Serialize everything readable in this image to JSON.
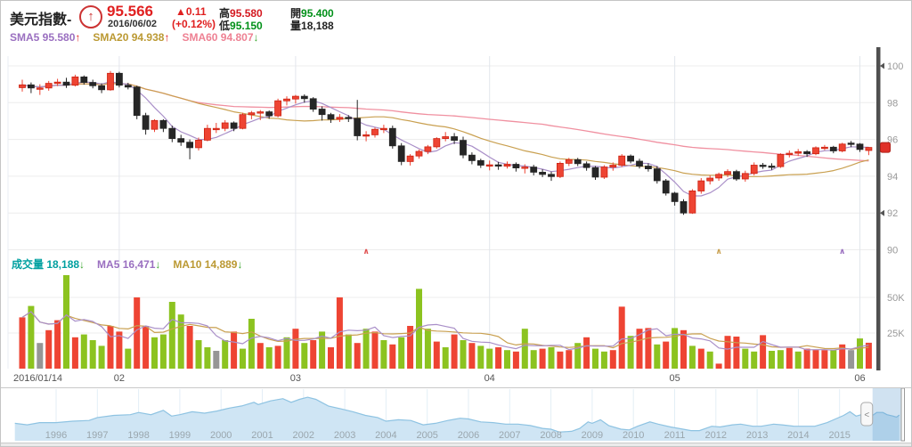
{
  "header": {
    "title": "美元指數-",
    "trend_icon_glyph": "↑",
    "price": "95.566",
    "date": "2016/06/02",
    "change": "▲0.11",
    "change_pct": "(+0.12%)",
    "high_label": "高",
    "high": "95.580",
    "open_label": "開",
    "open": "95.400",
    "low_label": "低",
    "low": "95.150",
    "vol_label": "量",
    "volume": "18,188"
  },
  "sma_row": [
    {
      "label": "SMA5",
      "value": "95.580",
      "arrow": "↑",
      "color": "#9a6fc0",
      "arrow_color": "#e02020"
    },
    {
      "label": "SMA20",
      "value": "94.938",
      "arrow": "↑",
      "color": "#bb9933",
      "arrow_color": "#e02020"
    },
    {
      "label": "SMA60",
      "value": "94.807",
      "arrow": "↓",
      "color": "#ee8193",
      "arrow_color": "#3aa62e"
    }
  ],
  "volume_row": [
    {
      "label": "成交量",
      "value": "18,188",
      "arrow": "↓",
      "color": "#00a0a0",
      "arrow_color": "#3aa62e"
    },
    {
      "label": "MA5",
      "value": "16,471",
      "arrow": "↓",
      "color": "#9a6fc0",
      "arrow_color": "#3aa62e"
    },
    {
      "label": "MA10",
      "value": "14,889",
      "arrow": "↓",
      "color": "#bb9933",
      "arrow_color": "#3aa62e"
    }
  ],
  "colors": {
    "candle_up": "#ee4433",
    "candle_up_stroke": "#cc2211",
    "candle_down": "#262626",
    "vol_up": "#ee4433",
    "vol_down": "#8cc320",
    "vol_flat": "#969696",
    "sma5": "#a98fc8",
    "sma20": "#c9a050",
    "sma60": "#f090a0",
    "grid": "#ececec",
    "vgrid": "#e2e6ec",
    "axis_text": "#999999",
    "xlabel_text": "#555555",
    "side_bar": "#4f4f4f",
    "price_tag": "#e03028",
    "nav_fill": "#cfe5f4",
    "nav_line": "#8ec3e2",
    "nav_sel": "rgba(100,160,210,0.30)",
    "nav_grid": "#e3eef6",
    "nav_text": "#9aa6ad",
    "border": "#c9c9c9"
  },
  "chart_data": {
    "type": "candlestick+volume",
    "title": "美元指數 (US Dollar Index) daily candlestick chart with SMA5/SMA20/SMA60 and volume",
    "y_axis_ticks": [
      100,
      98,
      96,
      94,
      92,
      90
    ],
    "axis_triangle_levels": [
      100,
      92
    ],
    "current_price": 95.566,
    "volume_ticks": [
      {
        "label": "50K",
        "value": 50000
      },
      {
        "label": "25K",
        "value": 25000
      }
    ],
    "x_labels": [
      {
        "text": "2016/01/14",
        "index": 0,
        "align": "start"
      },
      {
        "text": "02",
        "index": 11,
        "align": "middle"
      },
      {
        "text": "03",
        "index": 31,
        "align": "middle"
      },
      {
        "text": "04",
        "index": 53,
        "align": "middle"
      },
      {
        "text": "05",
        "index": 74,
        "align": "middle"
      },
      {
        "text": "06",
        "index": 95,
        "align": "middle"
      }
    ],
    "signal_markers": [
      {
        "index": 39,
        "glyph": "∧",
        "color": "#e05050"
      },
      {
        "index": 79,
        "glyph": "∧",
        "color": "#c9a050"
      },
      {
        "index": 93,
        "glyph": "∧",
        "color": "#9a6fc0"
      }
    ],
    "candles_columns": [
      "date",
      "open",
      "high",
      "low",
      "close",
      "volume",
      "vol_color(r=up,g=down,n=flat)"
    ],
    "candles": [
      [
        "01/14",
        98.82,
        99.25,
        98.6,
        98.97,
        36000,
        "r"
      ],
      [
        "01/15",
        98.97,
        99.1,
        98.52,
        98.8,
        44000,
        "g"
      ],
      [
        "01/19",
        98.8,
        99.0,
        98.42,
        98.8,
        18000,
        "n"
      ],
      [
        "01/20",
        98.8,
        99.18,
        98.65,
        99.05,
        27000,
        "r"
      ],
      [
        "01/21",
        99.05,
        99.3,
        98.9,
        99.12,
        34000,
        "r"
      ],
      [
        "01/22",
        99.12,
        99.35,
        98.8,
        98.95,
        65600,
        "g"
      ],
      [
        "01/25",
        98.95,
        99.52,
        98.88,
        99.4,
        22000,
        "r"
      ],
      [
        "01/26",
        99.4,
        99.48,
        98.98,
        99.1,
        24000,
        "g"
      ],
      [
        "01/27",
        99.1,
        99.25,
        98.78,
        98.92,
        20000,
        "g"
      ],
      [
        "01/28",
        98.92,
        99.05,
        98.52,
        98.7,
        16000,
        "g"
      ],
      [
        "01/29",
        98.7,
        99.72,
        98.65,
        99.6,
        30000,
        "r"
      ],
      [
        "02/01",
        99.6,
        99.68,
        98.83,
        98.95,
        26000,
        "r"
      ],
      [
        "02/02",
        98.95,
        99.08,
        98.72,
        98.85,
        14000,
        "g"
      ],
      [
        "02/03",
        98.85,
        98.92,
        97.1,
        97.3,
        50000,
        "r"
      ],
      [
        "02/04",
        97.3,
        97.45,
        96.26,
        96.55,
        30000,
        "r"
      ],
      [
        "02/05",
        96.55,
        97.1,
        96.4,
        97.03,
        22000,
        "g"
      ],
      [
        "02/08",
        97.03,
        97.1,
        96.4,
        96.6,
        24000,
        "g"
      ],
      [
        "02/09",
        96.6,
        96.75,
        95.85,
        96.05,
        46900,
        "g"
      ],
      [
        "02/10",
        96.05,
        96.25,
        95.65,
        95.85,
        38000,
        "g"
      ],
      [
        "02/11",
        95.85,
        96.0,
        94.92,
        95.55,
        30000,
        "r"
      ],
      [
        "02/12",
        95.55,
        96.1,
        95.4,
        95.96,
        20000,
        "g"
      ],
      [
        "02/16",
        95.96,
        96.8,
        95.9,
        96.6,
        15000,
        "g"
      ],
      [
        "02/17",
        96.6,
        96.9,
        96.35,
        96.6,
        12500,
        "n"
      ],
      [
        "02/18",
        96.6,
        97.05,
        96.45,
        96.9,
        20000,
        "g"
      ],
      [
        "02/19",
        96.9,
        96.98,
        96.45,
        96.6,
        26000,
        "r"
      ],
      [
        "02/22",
        96.6,
        97.45,
        96.55,
        97.35,
        14000,
        "g"
      ],
      [
        "02/23",
        97.35,
        97.55,
        97.1,
        97.45,
        35000,
        "g"
      ],
      [
        "02/24",
        97.45,
        97.6,
        97.05,
        97.5,
        18000,
        "r"
      ],
      [
        "02/25",
        97.5,
        97.58,
        97.12,
        97.28,
        15000,
        "g"
      ],
      [
        "02/26",
        97.28,
        98.22,
        97.2,
        98.1,
        16000,
        "r"
      ],
      [
        "02/29",
        98.1,
        98.35,
        97.85,
        98.2,
        22000,
        "g"
      ],
      [
        "03/01",
        98.2,
        98.42,
        97.95,
        98.35,
        28000,
        "r"
      ],
      [
        "03/02",
        98.35,
        98.45,
        98.0,
        98.22,
        18000,
        "g"
      ],
      [
        "03/03",
        98.22,
        98.3,
        97.5,
        97.65,
        20000,
        "r"
      ],
      [
        "03/04",
        97.65,
        97.8,
        97.02,
        97.35,
        26000,
        "g"
      ],
      [
        "03/07",
        97.35,
        97.45,
        96.9,
        97.1,
        15000,
        "r"
      ],
      [
        "03/08",
        97.1,
        97.38,
        96.95,
        97.2,
        50000,
        "r"
      ],
      [
        "03/09",
        97.2,
        97.32,
        96.95,
        97.15,
        24000,
        "g"
      ],
      [
        "03/10",
        97.15,
        98.15,
        95.95,
        96.2,
        18000,
        "r"
      ],
      [
        "03/11",
        96.2,
        96.45,
        95.9,
        96.25,
        28000,
        "g"
      ],
      [
        "03/14",
        96.25,
        96.65,
        96.1,
        96.55,
        26000,
        "r"
      ],
      [
        "03/15",
        96.55,
        96.8,
        96.35,
        96.6,
        20000,
        "g"
      ],
      [
        "03/16",
        96.6,
        96.75,
        95.5,
        95.65,
        17000,
        "r"
      ],
      [
        "03/17",
        95.65,
        95.8,
        94.6,
        94.8,
        22000,
        "g"
      ],
      [
        "03/18",
        94.8,
        95.2,
        94.58,
        95.1,
        30000,
        "r"
      ],
      [
        "03/21",
        95.1,
        95.45,
        94.95,
        95.35,
        56000,
        "g"
      ],
      [
        "03/22",
        95.35,
        95.7,
        95.2,
        95.6,
        28000,
        "g"
      ],
      [
        "03/23",
        95.6,
        96.12,
        95.5,
        96.05,
        19000,
        "r"
      ],
      [
        "03/24",
        96.05,
        96.4,
        95.9,
        96.15,
        15000,
        "g"
      ],
      [
        "03/28",
        96.15,
        96.35,
        95.75,
        95.95,
        24000,
        "r"
      ],
      [
        "03/29",
        95.95,
        96.15,
        94.98,
        95.15,
        20000,
        "g"
      ],
      [
        "03/30",
        95.15,
        95.3,
        94.65,
        94.85,
        18000,
        "r"
      ],
      [
        "03/31",
        94.85,
        94.95,
        94.45,
        94.6,
        16000,
        "g"
      ],
      [
        "04/01",
        94.6,
        94.85,
        94.32,
        94.62,
        14000,
        "g"
      ],
      [
        "04/04",
        94.62,
        94.78,
        94.35,
        94.55,
        15000,
        "r"
      ],
      [
        "04/05",
        94.55,
        94.8,
        94.42,
        94.65,
        13000,
        "g"
      ],
      [
        "04/06",
        94.65,
        94.75,
        94.25,
        94.45,
        12000,
        "r"
      ],
      [
        "04/07",
        94.45,
        94.65,
        94.15,
        94.5,
        28000,
        "g"
      ],
      [
        "04/08",
        94.5,
        94.62,
        94.05,
        94.22,
        13000,
        "g"
      ],
      [
        "04/11",
        94.22,
        94.38,
        93.95,
        94.1,
        14000,
        "r"
      ],
      [
        "04/12",
        94.1,
        94.25,
        93.75,
        93.98,
        15000,
        "g"
      ],
      [
        "04/13",
        93.98,
        94.8,
        93.9,
        94.7,
        12000,
        "r"
      ],
      [
        "04/14",
        94.7,
        95.0,
        94.55,
        94.9,
        13000,
        "r"
      ],
      [
        "04/15",
        94.9,
        95.0,
        94.55,
        94.68,
        18000,
        "g"
      ],
      [
        "04/18",
        94.68,
        94.8,
        94.3,
        94.47,
        22000,
        "r"
      ],
      [
        "04/19",
        94.47,
        94.55,
        93.8,
        93.95,
        14000,
        "g"
      ],
      [
        "04/20",
        93.95,
        94.6,
        93.85,
        94.5,
        12000,
        "g"
      ],
      [
        "04/21",
        94.5,
        94.75,
        94.3,
        94.6,
        13000,
        "r"
      ],
      [
        "04/22",
        94.6,
        95.2,
        94.5,
        95.1,
        43500,
        "r"
      ],
      [
        "04/25",
        95.1,
        95.18,
        94.7,
        94.82,
        23000,
        "g"
      ],
      [
        "04/26",
        94.82,
        94.95,
        94.42,
        94.55,
        28000,
        "r"
      ],
      [
        "04/27",
        94.55,
        94.7,
        94.25,
        94.4,
        28500,
        "r"
      ],
      [
        "04/28",
        94.4,
        94.55,
        93.6,
        93.75,
        17000,
        "g"
      ],
      [
        "04/29",
        93.75,
        93.85,
        92.95,
        93.08,
        19000,
        "r"
      ],
      [
        "05/02",
        93.08,
        93.15,
        92.4,
        92.62,
        28500,
        "g"
      ],
      [
        "05/03",
        92.62,
        92.75,
        91.9,
        92.0,
        27000,
        "r"
      ],
      [
        "05/04",
        92.0,
        93.3,
        91.95,
        93.2,
        16000,
        "g"
      ],
      [
        "05/05",
        93.2,
        93.9,
        93.05,
        93.75,
        14000,
        "r"
      ],
      [
        "05/06",
        93.75,
        94.05,
        93.55,
        93.9,
        12000,
        "g"
      ],
      [
        "05/09",
        93.9,
        94.2,
        93.75,
        94.1,
        3500,
        "r"
      ],
      [
        "05/10",
        94.1,
        94.38,
        93.95,
        94.25,
        23000,
        "r"
      ],
      [
        "05/11",
        94.25,
        94.35,
        93.75,
        93.85,
        22500,
        "r"
      ],
      [
        "05/12",
        93.85,
        94.3,
        93.7,
        94.15,
        14000,
        "g"
      ],
      [
        "05/13",
        94.15,
        94.75,
        94.05,
        94.6,
        12000,
        "g"
      ],
      [
        "05/16",
        94.6,
        94.72,
        94.4,
        94.55,
        23500,
        "r"
      ],
      [
        "05/17",
        94.55,
        94.7,
        94.35,
        94.52,
        12500,
        "g"
      ],
      [
        "05/18",
        94.52,
        95.25,
        94.45,
        95.18,
        13000,
        "g"
      ],
      [
        "05/19",
        95.18,
        95.4,
        95.02,
        95.25,
        14500,
        "r"
      ],
      [
        "05/20",
        95.25,
        95.48,
        95.1,
        95.33,
        12000,
        "g"
      ],
      [
        "05/23",
        95.33,
        95.42,
        95.05,
        95.22,
        14000,
        "r"
      ],
      [
        "05/24",
        95.22,
        95.62,
        95.15,
        95.55,
        13035,
        "r"
      ],
      [
        "05/25",
        95.55,
        95.7,
        95.42,
        95.58,
        13000,
        "r"
      ],
      [
        "05/26",
        95.58,
        95.65,
        95.25,
        95.378,
        13000,
        "g"
      ],
      [
        "05/27",
        95.378,
        95.82,
        95.3,
        95.75,
        17000,
        "r"
      ],
      [
        "05/31",
        95.8,
        95.92,
        95.58,
        95.75,
        13000,
        "n"
      ],
      [
        "06/01",
        95.75,
        95.8,
        95.32,
        95.456,
        21167,
        "g"
      ],
      [
        "06/02",
        95.4,
        95.58,
        95.15,
        95.566,
        18188,
        "r"
      ]
    ],
    "navigator": {
      "year_ticks": [
        1996,
        1997,
        1998,
        1999,
        2000,
        2001,
        2002,
        2003,
        2004,
        2005,
        2006,
        2007,
        2008,
        2009,
        2010,
        2011,
        2012,
        2013,
        2014,
        2015
      ],
      "selection_years": [
        2015.8,
        2016.5
      ],
      "series": [
        [
          1995.0,
          84
        ],
        [
          1995.3,
          82
        ],
        [
          1995.6,
          85
        ],
        [
          1996.0,
          85
        ],
        [
          1996.4,
          87
        ],
        [
          1996.8,
          88
        ],
        [
          1997.0,
          92
        ],
        [
          1997.4,
          95
        ],
        [
          1997.8,
          96
        ],
        [
          1998.0,
          99
        ],
        [
          1998.3,
          96
        ],
        [
          1998.6,
          102
        ],
        [
          1998.8,
          94
        ],
        [
          1999.0,
          96
        ],
        [
          1999.3,
          100
        ],
        [
          1999.6,
          98
        ],
        [
          1999.9,
          101
        ],
        [
          2000.2,
          105
        ],
        [
          2000.5,
          108
        ],
        [
          2000.8,
          113
        ],
        [
          2000.9,
          110
        ],
        [
          2001.2,
          115
        ],
        [
          2001.5,
          118
        ],
        [
          2001.7,
          113
        ],
        [
          2001.9,
          117
        ],
        [
          2002.1,
          120
        ],
        [
          2002.3,
          117
        ],
        [
          2002.6,
          108
        ],
        [
          2002.9,
          104
        ],
        [
          2003.2,
          100
        ],
        [
          2003.5,
          95
        ],
        [
          2003.8,
          92
        ],
        [
          2004.0,
          87
        ],
        [
          2004.3,
          89
        ],
        [
          2004.6,
          88
        ],
        [
          2004.9,
          82
        ],
        [
          2005.2,
          84
        ],
        [
          2005.5,
          88
        ],
        [
          2005.8,
          91
        ],
        [
          2006.0,
          90
        ],
        [
          2006.3,
          86
        ],
        [
          2006.6,
          85
        ],
        [
          2006.9,
          83
        ],
        [
          2007.2,
          83
        ],
        [
          2007.5,
          81
        ],
        [
          2007.8,
          77
        ],
        [
          2008.0,
          76
        ],
        [
          2008.2,
          72
        ],
        [
          2008.5,
          73
        ],
        [
          2008.7,
          77
        ],
        [
          2008.9,
          86
        ],
        [
          2009.0,
          84
        ],
        [
          2009.2,
          89
        ],
        [
          2009.4,
          81
        ],
        [
          2009.7,
          76
        ],
        [
          2009.9,
          75
        ],
        [
          2010.1,
          80
        ],
        [
          2010.4,
          86
        ],
        [
          2010.6,
          83
        ],
        [
          2010.9,
          79
        ],
        [
          2011.1,
          77
        ],
        [
          2011.4,
          74
        ],
        [
          2011.6,
          74
        ],
        [
          2011.9,
          80
        ],
        [
          2012.1,
          79
        ],
        [
          2012.4,
          82
        ],
        [
          2012.6,
          83
        ],
        [
          2012.9,
          80
        ],
        [
          2013.1,
          80
        ],
        [
          2013.4,
          83
        ],
        [
          2013.6,
          82
        ],
        [
          2013.9,
          80
        ],
        [
          2014.1,
          80
        ],
        [
          2014.4,
          80
        ],
        [
          2014.7,
          85
        ],
        [
          2014.9,
          90
        ],
        [
          2015.1,
          95
        ],
        [
          2015.25,
          100
        ],
        [
          2015.4,
          94
        ],
        [
          2015.6,
          97
        ],
        [
          2015.8,
          95
        ],
        [
          2015.9,
          99
        ],
        [
          2016.05,
          99
        ],
        [
          2016.15,
          96
        ],
        [
          2016.3,
          94
        ],
        [
          2016.38,
          92.5
        ],
        [
          2016.45,
          95.5
        ]
      ]
    }
  }
}
